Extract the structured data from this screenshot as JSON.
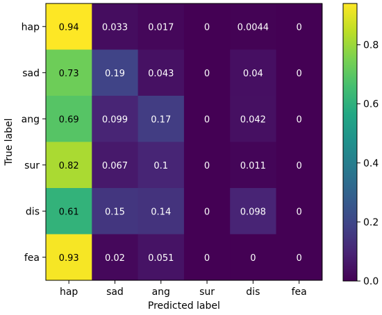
{
  "chart_data": {
    "type": "heatmap",
    "title": "",
    "xlabel": "Predicted label",
    "ylabel": "True label",
    "x_categories": [
      "hap",
      "sad",
      "ang",
      "sur",
      "dis",
      "fea"
    ],
    "y_categories": [
      "hap",
      "sad",
      "ang",
      "sur",
      "dis",
      "fea"
    ],
    "values": [
      [
        0.94,
        0.033,
        0.017,
        0,
        0.0044,
        0
      ],
      [
        0.73,
        0.19,
        0.043,
        0,
        0.04,
        0
      ],
      [
        0.69,
        0.099,
        0.17,
        0,
        0.042,
        0
      ],
      [
        0.82,
        0.067,
        0.1,
        0,
        0.011,
        0
      ],
      [
        0.61,
        0.15,
        0.14,
        0,
        0.098,
        0
      ],
      [
        0.93,
        0.02,
        0.051,
        0,
        0,
        0
      ]
    ],
    "cell_labels": [
      [
        "0.94",
        "0.033",
        "0.017",
        "0",
        "0.0044",
        "0"
      ],
      [
        "0.73",
        "0.19",
        "0.043",
        "0",
        "0.04",
        "0"
      ],
      [
        "0.69",
        "0.099",
        "0.17",
        "0",
        "0.042",
        "0"
      ],
      [
        "0.82",
        "0.067",
        "0.1",
        "0",
        "0.011",
        "0"
      ],
      [
        "0.61",
        "0.15",
        "0.14",
        "0",
        "0.098",
        "0"
      ],
      [
        "0.93",
        "0.02",
        "0.051",
        "0",
        "0",
        "0"
      ]
    ],
    "colormap": "viridis",
    "colorbar": {
      "range": [
        0,
        0.94
      ],
      "ticks": [
        0.0,
        0.2,
        0.4,
        0.6,
        0.8
      ],
      "tick_labels": [
        "0.0",
        "0.2",
        "0.4",
        "0.6",
        "0.8"
      ]
    },
    "grid": false
  }
}
